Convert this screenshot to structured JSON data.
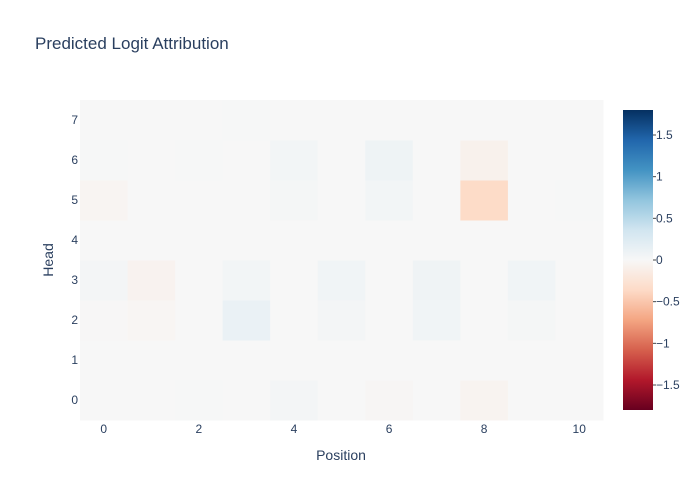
{
  "chart_data": {
    "type": "heatmap",
    "title": "Predicted Logit Attribution",
    "xlabel": "Position",
    "ylabel": "Head",
    "x": [
      0,
      1,
      2,
      3,
      4,
      5,
      6,
      7,
      8,
      9,
      10
    ],
    "y": [
      0,
      1,
      2,
      3,
      4,
      5,
      6,
      7
    ],
    "x_tick_labels": [
      "0",
      "2",
      "4",
      "6",
      "8",
      "10"
    ],
    "x_tick_values": [
      0,
      2,
      4,
      6,
      8,
      10
    ],
    "y_tick_labels": [
      "0",
      "1",
      "2",
      "3",
      "4",
      "5",
      "6",
      "7"
    ],
    "colorscale": "RdBu",
    "zmin": -1.8,
    "zmax": 1.8,
    "colorbar_tick_values": [
      1.5,
      1,
      0.5,
      0,
      -0.5,
      -1,
      -1.5
    ],
    "colorbar_tick_labels": [
      "1.5",
      "1",
      "0.5",
      "0",
      "−0.5",
      "−1",
      "−1.5"
    ],
    "z": [
      [
        0.0,
        0.0,
        0.01,
        0.0,
        0.04,
        0.0,
        -0.02,
        0.0,
        -0.05,
        0.0,
        0.0
      ],
      [
        0.0,
        0.0,
        0.0,
        0.0,
        0.0,
        0.0,
        0.0,
        0.0,
        0.0,
        0.0,
        0.0
      ],
      [
        -0.01,
        -0.03,
        0.0,
        0.12,
        0.0,
        0.04,
        0.0,
        0.07,
        0.0,
        0.03,
        0.0
      ],
      [
        0.04,
        -0.06,
        0.0,
        0.05,
        0.0,
        0.07,
        0.0,
        0.08,
        0.0,
        0.07,
        0.0
      ],
      [
        0.0,
        0.0,
        0.0,
        0.0,
        0.0,
        0.0,
        0.0,
        0.0,
        0.0,
        0.0,
        0.0
      ],
      [
        -0.04,
        0.0,
        0.0,
        0.0,
        0.03,
        0.0,
        0.05,
        0.0,
        -0.35,
        0.0,
        0.01
      ],
      [
        0.01,
        0.0,
        0.01,
        0.0,
        0.05,
        0.0,
        0.09,
        0.0,
        -0.08,
        0.0,
        0.0
      ],
      [
        0.0,
        0.0,
        0.0,
        0.01,
        0.0,
        0.0,
        0.0,
        0.0,
        0.0,
        0.0,
        0.0
      ]
    ]
  }
}
